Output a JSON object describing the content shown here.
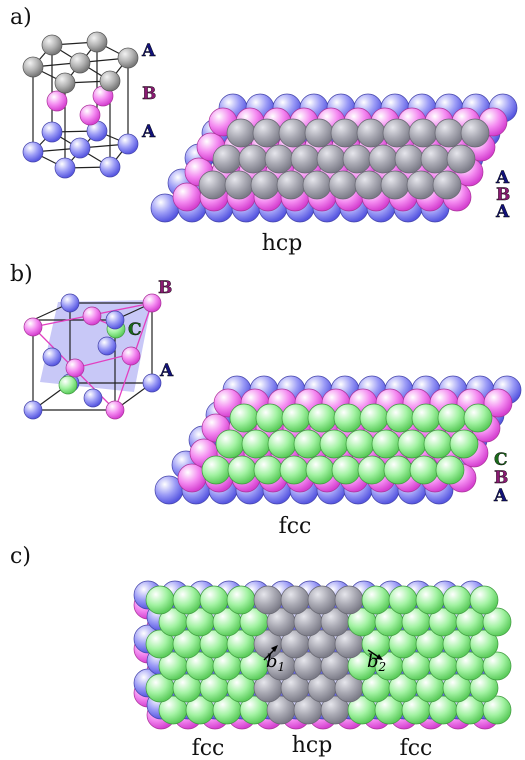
{
  "panels": {
    "a": {
      "letter": "a)",
      "caption": "hcp",
      "unit_layers": [
        "A",
        "B",
        "A"
      ],
      "stack": [
        "A",
        "B",
        "A"
      ]
    },
    "b": {
      "letter": "b)",
      "caption": "fcc",
      "unit_layers": [
        "B",
        "C",
        "A"
      ],
      "stack": [
        "C",
        "B",
        "A"
      ]
    },
    "c": {
      "letter": "c)",
      "regions": [
        "fcc",
        "hcp",
        "fcc"
      ],
      "vectors": [
        "b",
        "b"
      ],
      "vector_subscripts": [
        "1",
        "2"
      ]
    }
  },
  "colors": {
    "A": "#8f8ff5",
    "B": "#f37ef0",
    "C": "#9cf29c",
    "hcp_top": "#a8a8b2",
    "label_A": "#12127a",
    "label_B": "#8a1a72",
    "label_C": "#1a6a1a"
  }
}
